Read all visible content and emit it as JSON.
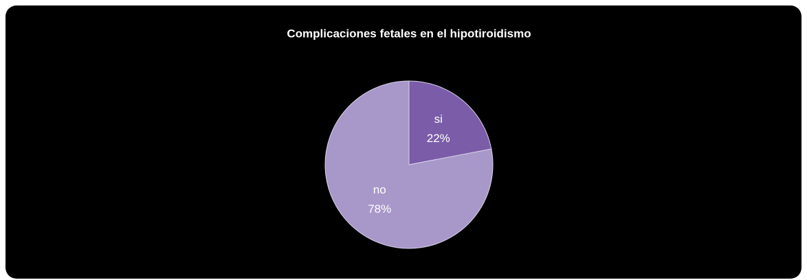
{
  "chart_data": {
    "type": "pie",
    "title": "Complicaciones  fetales en el hipotiroidismo",
    "categories": [
      "si",
      "no"
    ],
    "values": [
      22,
      78
    ],
    "value_labels": [
      "22%",
      "78%"
    ],
    "colors": [
      "#7b5ca8",
      "#a898c9"
    ]
  }
}
